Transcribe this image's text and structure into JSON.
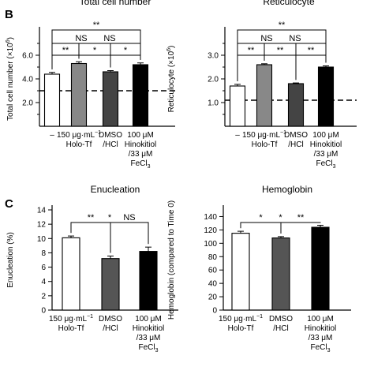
{
  "panels": {
    "B": "B",
    "C": "C"
  },
  "colors": {
    "holo_tf": "#ffffff",
    "dmso": "#555555",
    "hinokitiol": "#000000",
    "p1": "#888888",
    "p2": "#444444",
    "axis": "#000000"
  },
  "chart_data": [
    {
      "type": "bar",
      "title": "Total cell number",
      "ylabel": "Total cell number (×10",
      "ylabel_sup": "6",
      "ylabel_tail": ")",
      "ylim": [
        0,
        8
      ],
      "yticks": [
        2.0,
        4.0,
        6.0
      ],
      "yticklabels": [
        "2.0",
        "4.0",
        "6.0"
      ],
      "baseline": 3.0,
      "categories": [
        "–",
        "150 μg·mL⁻¹ Holo-Tf",
        "DMSO /HCl",
        "100 μM Hinokitiol /33 μM FeCl3"
      ],
      "values": [
        4.4,
        5.3,
        4.6,
        5.2
      ],
      "errors": [
        0.15,
        0.15,
        0.1,
        0.15
      ],
      "bar_colors": [
        "#ffffff",
        "#888888",
        "#444444",
        "#000000"
      ],
      "significance": [
        {
          "a": 0,
          "b": 1,
          "label": "**"
        },
        {
          "a": 1,
          "b": 2,
          "label": "*"
        },
        {
          "a": 2,
          "b": 3,
          "label": "*"
        },
        {
          "a": 0,
          "b": 2,
          "label": "NS"
        },
        {
          "a": 1,
          "b": 3,
          "label": "NS"
        },
        {
          "a": 0,
          "b": 3,
          "label": "**"
        }
      ]
    },
    {
      "type": "bar",
      "title": "Reticulocyte",
      "ylabel": "Reticulocyte (×10",
      "ylabel_sup": "6",
      "ylabel_tail": ")",
      "ylim": [
        0,
        4
      ],
      "yticks": [
        1.0,
        2.0,
        3.0
      ],
      "yticklabels": [
        "1.0",
        "2.0",
        "3.0"
      ],
      "baseline": 1.1,
      "categories": [
        "–",
        "150 μg·mL⁻¹ Holo-Tf",
        "DMSO /HCl",
        "100 μM Hinokitiol /33 μM FeCl3"
      ],
      "values": [
        1.7,
        2.6,
        1.8,
        2.5
      ],
      "errors": [
        0.07,
        0.04,
        0.03,
        0.05
      ],
      "bar_colors": [
        "#ffffff",
        "#888888",
        "#444444",
        "#000000"
      ],
      "significance": [
        {
          "a": 0,
          "b": 1,
          "label": "**"
        },
        {
          "a": 1,
          "b": 2,
          "label": "**"
        },
        {
          "a": 2,
          "b": 3,
          "label": "**"
        },
        {
          "a": 0,
          "b": 2,
          "label": "NS"
        },
        {
          "a": 1,
          "b": 3,
          "label": "NS"
        },
        {
          "a": 0,
          "b": 3,
          "label": "**"
        }
      ]
    },
    {
      "type": "bar",
      "title": "Enucleation",
      "ylabel": "Enucleation (%)",
      "ylim": [
        0,
        14
      ],
      "yticks": [
        0,
        2,
        4,
        6,
        8,
        10,
        12,
        14
      ],
      "yticklabels": [
        "0",
        "2",
        "4",
        "6",
        "8",
        "10",
        "12",
        "14"
      ],
      "categories": [
        "150 μg·mL⁻¹ Holo-Tf",
        "DMSO /HCl",
        "100 μM Hinokitiol /33 μM FeCl3"
      ],
      "values": [
        10.1,
        7.2,
        8.2
      ],
      "errors": [
        0.25,
        0.35,
        0.6
      ],
      "bar_colors": [
        "#ffffff",
        "#555555",
        "#000000"
      ],
      "significance": [
        {
          "a": 0,
          "b": 1,
          "label": "**"
        },
        {
          "a": 1,
          "b": 2,
          "label": "NS"
        },
        {
          "a": 0,
          "b": 2,
          "label": "*"
        }
      ]
    },
    {
      "type": "bar",
      "title": "Hemoglobin",
      "ylabel": "Hemoglobin (compared to Time 0)",
      "ylim": [
        0,
        150
      ],
      "yticks": [
        0,
        20,
        40,
        60,
        80,
        100,
        120,
        140
      ],
      "yticklabels": [
        "0",
        "20",
        "40",
        "60",
        "80",
        "100",
        "120",
        "140"
      ],
      "categories": [
        "150 μg·mL⁻¹ Holo-Tf",
        "DMSO /HCl",
        "100 μM Hinokitiol /33 μM FeCl3"
      ],
      "values": [
        115,
        108,
        124
      ],
      "errors": [
        3,
        2,
        3
      ],
      "bar_colors": [
        "#ffffff",
        "#555555",
        "#000000"
      ],
      "significance": [
        {
          "a": 0,
          "b": 1,
          "label": "*"
        },
        {
          "a": 1,
          "b": 2,
          "label": "**"
        },
        {
          "a": 0,
          "b": 2,
          "label": "*"
        }
      ]
    }
  ],
  "xlabels": {
    "dash": "–",
    "holo_line1": "150 μg·mL",
    "holo_sup": "−1",
    "holo_line2": "Holo-Tf",
    "dmso_line1": "DMSO",
    "dmso_line2": "/HCl",
    "hino_line1": "100 μM",
    "hino_line2": "Hinokitiol",
    "hino_line3": "/33 μM",
    "hino_line4": "FeCl",
    "hino_sub": "3"
  }
}
